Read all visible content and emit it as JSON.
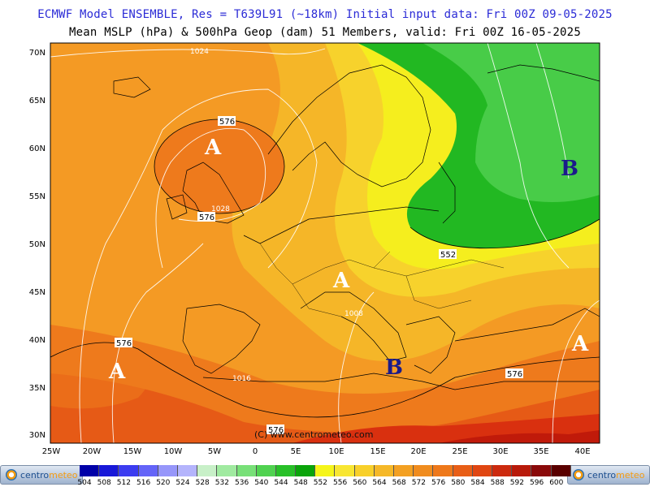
{
  "title_line_1": "ECMWF Model ENSEMBLE, Res = T639L91 (~18km)  Initial input data: Fri 00Z 09-05-2025",
  "title_line_2": "Mean MSLP (hPa) & 500hPa Geop (dam)   51 Members, valid: Fri 00Z 16-05-2025",
  "lat_labels": [
    "70N",
    "65N",
    "60N",
    "55N",
    "50N",
    "45N",
    "40N",
    "35N",
    "30N"
  ],
  "lon_labels": [
    "25W",
    "20W",
    "15W",
    "10W",
    "5W",
    "0",
    "5E",
    "10E",
    "15E",
    "20E",
    "25E",
    "30E",
    "35E",
    "40E"
  ],
  "pressure_centers": [
    "A",
    "A",
    "A",
    "A",
    "B",
    "B"
  ],
  "geop_labels": [
    "576",
    "576",
    "552",
    "576",
    "576",
    "576"
  ],
  "mslp_labels": [
    "1024",
    "1028",
    "1008",
    "1016"
  ],
  "copyright": "(C) www.centrometeo.com",
  "colorbar": {
    "values": [
      "504",
      "508",
      "512",
      "516",
      "520",
      "524",
      "528",
      "532",
      "536",
      "540",
      "544",
      "548",
      "552",
      "556",
      "560",
      "564",
      "568",
      "572",
      "576",
      "580",
      "584",
      "588",
      "592",
      "596",
      "600"
    ],
    "colors": [
      "#0000a8",
      "#1818d8",
      "#3c3cf0",
      "#6464f8",
      "#9696fa",
      "#b4b4fc",
      "#c8f0c8",
      "#a0eaa0",
      "#78e078",
      "#50d250",
      "#28c028",
      "#0aa40a",
      "#f5f51a",
      "#f8e632",
      "#f8d02a",
      "#f5b828",
      "#f3a022",
      "#f08c1e",
      "#ee781a",
      "#e85e16",
      "#e04612",
      "#cc2a0e",
      "#b81a0a",
      "#8a0a0a",
      "#5a0000"
    ]
  },
  "logo": {
    "text_left": "centro",
    "text_right": "meteo"
  }
}
